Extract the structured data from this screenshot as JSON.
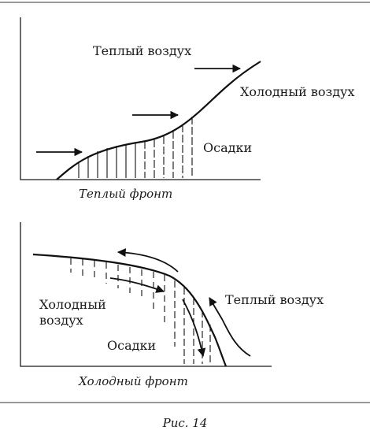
{
  "warm_front": {
    "label_warm_air": "Теплый воздух",
    "label_cold_air": "Холодный воздух",
    "label_precipitation": "Осадки",
    "caption": "Теплый фронт"
  },
  "cold_front": {
    "label_cold_air_line1": "Холодный",
    "label_cold_air_line2": "воздух",
    "label_warm_air": "Теплый воздух",
    "label_precipitation": "Осадки",
    "caption": "Холодный фронт"
  },
  "figure_caption": "Рис. 14"
}
